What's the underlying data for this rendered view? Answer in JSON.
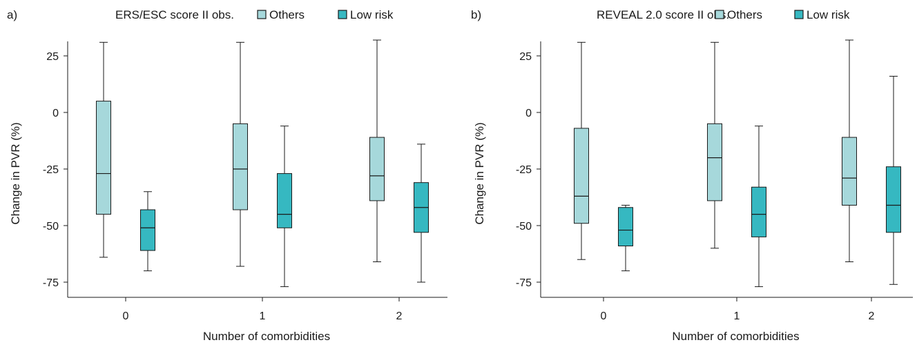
{
  "colors": {
    "others": "#a6d8db",
    "low_risk": "#36b8c1",
    "stroke": "#1a1a1a"
  },
  "chart_data": [
    {
      "panel_label": "a)",
      "type": "box",
      "legend_title": "ERS/ESC score II obs.",
      "legend_position": "top",
      "xlabel": "Number of comorbidities",
      "ylabel": "Change in PVR (%)",
      "categories": [
        "0",
        "1",
        "2"
      ],
      "ylim": [
        -80,
        35
      ],
      "yticks": [
        25,
        0,
        -25,
        -50,
        -75
      ],
      "ytick_labels": [
        "25",
        "0",
        "-25",
        "-50",
        "-75"
      ],
      "grid": false,
      "series": [
        {
          "name": "Others",
          "boxes": [
            {
              "min": -64,
              "q1": -45,
              "median": -27,
              "q3": 5,
              "max": 31
            },
            {
              "min": -68,
              "q1": -43,
              "median": -25,
              "q3": -5,
              "max": 31
            },
            {
              "min": -66,
              "q1": -39,
              "median": -28,
              "q3": -11,
              "max": 32
            }
          ]
        },
        {
          "name": "Low risk",
          "boxes": [
            {
              "min": -70,
              "q1": -61,
              "median": -51,
              "q3": -43,
              "max": -35
            },
            {
              "min": -77,
              "q1": -51,
              "median": -45,
              "q3": -27,
              "max": -6
            },
            {
              "min": -75,
              "q1": -53,
              "median": -42,
              "q3": -31,
              "max": -14
            }
          ]
        }
      ]
    },
    {
      "panel_label": "b)",
      "type": "box",
      "legend_title": "REVEAL 2.0 score II obs.",
      "legend_position": "top",
      "xlabel": "Number of comorbidities",
      "ylabel": "Change in PVR (%)",
      "categories": [
        "0",
        "1",
        "2"
      ],
      "ylim": [
        -80,
        35
      ],
      "yticks": [
        25,
        0,
        -25,
        -50,
        -75
      ],
      "ytick_labels": [
        "25",
        "0",
        "-25",
        "-50",
        "-75"
      ],
      "grid": false,
      "series": [
        {
          "name": "Others",
          "boxes": [
            {
              "min": -65,
              "q1": -49,
              "median": -37,
              "q3": -7,
              "max": 31
            },
            {
              "min": -60,
              "q1": -39,
              "median": -20,
              "q3": -5,
              "max": 31
            },
            {
              "min": -66,
              "q1": -41,
              "median": -29,
              "q3": -11,
              "max": 32
            }
          ]
        },
        {
          "name": "Low risk",
          "boxes": [
            {
              "min": -70,
              "q1": -59,
              "median": -52,
              "q3": -42,
              "max": -41
            },
            {
              "min": -77,
              "q1": -55,
              "median": -45,
              "q3": -33,
              "max": -6
            },
            {
              "min": -76,
              "q1": -53,
              "median": -41,
              "q3": -24,
              "max": 16
            }
          ]
        }
      ]
    }
  ]
}
